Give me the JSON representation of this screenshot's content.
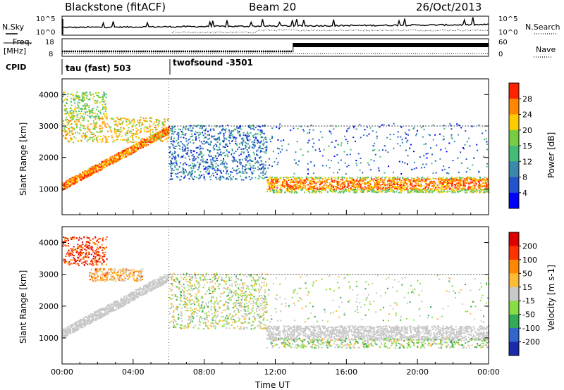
{
  "header": {
    "station": "Blackstone (fitACF)",
    "beam": "Beam 20",
    "date": "26/Oct/2013"
  },
  "panel_labels": {
    "nsky": "N.Sky",
    "nsearch": "N.Search",
    "freq_line1": "Freq.",
    "freq_line2": "[MHz]",
    "nave": "Nave",
    "cpid": "CPID",
    "cpid_mode1": "tau (fast) 503",
    "cpid_mode2": "twofsound -3501"
  },
  "noise_axes": {
    "left_ticks": [
      "10^5",
      "10^0"
    ],
    "right_ticks": [
      "10^5",
      "10^0"
    ]
  },
  "freq_axes": {
    "left_ticks": [
      "18",
      "8"
    ],
    "right_ticks": [
      "60",
      "0"
    ]
  },
  "chart_data": [
    {
      "type": "heatmap",
      "name": "power",
      "xlabel": "",
      "ylabel": "Slant Range [km]",
      "x_range_hours": [
        0,
        24
      ],
      "ylim": [
        180,
        4500
      ],
      "y_ticks": [
        "1000",
        "2000",
        "3000",
        "4000"
      ],
      "colorbar_label": "Power [dB]",
      "colorbar_ticks": [
        "4",
        "8",
        "12",
        "15",
        "20",
        "24",
        "28"
      ],
      "colors": [
        "#0000ff",
        "#2255cc",
        "#3b88aa",
        "#44bb77",
        "#77cc44",
        "#ffcc00",
        "#ff8800",
        "#ff2200"
      ],
      "features": [
        {
          "t0": 0.0,
          "t1": 6.0,
          "r0": 1050,
          "r1": 2900,
          "desc": "rising echo band"
        },
        {
          "t0": 0.0,
          "t1": 6.0,
          "r0": 2500,
          "r1": 3700,
          "desc": "patchy upper echoes"
        },
        {
          "t0": 6.0,
          "t1": 11.5,
          "r0": 1200,
          "r1": 3000,
          "desc": "scattered weak echoes"
        },
        {
          "t0": 11.5,
          "t1": 24.0,
          "r0": 700,
          "r1": 1500,
          "desc": "strong near-range band"
        }
      ]
    },
    {
      "type": "heatmap",
      "name": "velocity",
      "xlabel": "Time UT",
      "ylabel": "Slant Range [km]",
      "x_range_hours": [
        0,
        24
      ],
      "x_ticks": [
        "00:00",
        "04:00",
        "08:00",
        "12:00",
        "16:00",
        "20:00",
        "00:00"
      ],
      "ylim": [
        180,
        4500
      ],
      "y_ticks": [
        "1000",
        "2000",
        "3000",
        "4000"
      ],
      "colorbar_label": "Velocity [m s-1]",
      "colorbar_ticks": [
        "200",
        "100",
        "50",
        "15",
        "-15",
        "-50",
        "-100",
        "-200"
      ],
      "colors": [
        "#1a2aa8",
        "#3366cc",
        "#33aa55",
        "#88dd44",
        "#c8c8c8",
        "#ffbb33",
        "#ff8800",
        "#ff3300",
        "#dd0000"
      ]
    }
  ]
}
